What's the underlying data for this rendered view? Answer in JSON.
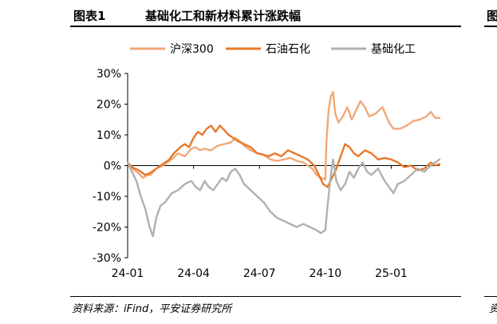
{
  "figure": {
    "number": "图表1",
    "title": "基础化工和新材料累计涨跌幅",
    "source": "资料来源：iFind，平安证券研究所",
    "next_header_fragment": "图",
    "next_source_fragment": "资"
  },
  "chart_data": {
    "type": "line",
    "title": "",
    "xlabel": "",
    "ylabel": "",
    "ylim": [
      -30,
      30
    ],
    "yticks": [
      "30%",
      "20%",
      "10%",
      "0%",
      "-10%",
      "-20%",
      "-30%"
    ],
    "ytick_values": [
      30,
      20,
      10,
      0,
      -10,
      -20,
      -30
    ],
    "xtick_labels": [
      "24-01",
      "24-04",
      "24-07",
      "24-10",
      "25-01"
    ],
    "xtick_months": [
      0,
      3,
      6,
      9,
      12
    ],
    "x_range_months": [
      0,
      14.2
    ],
    "legend_position": "top",
    "grid": false,
    "x_unit": "months since 24-01",
    "series": [
      {
        "name": "沪深300",
        "color": "#f0a878",
        "points": [
          [
            0,
            1
          ],
          [
            0.3,
            -1.5
          ],
          [
            0.5,
            -2.5
          ],
          [
            0.7,
            -4
          ],
          [
            0.9,
            -3
          ],
          [
            1.05,
            -3
          ],
          [
            1.3,
            -1
          ],
          [
            1.6,
            0
          ],
          [
            2.0,
            2
          ],
          [
            2.3,
            4
          ],
          [
            2.6,
            3
          ],
          [
            2.9,
            5.5
          ],
          [
            3.1,
            6
          ],
          [
            3.3,
            5
          ],
          [
            3.5,
            5.5
          ],
          [
            3.8,
            5
          ],
          [
            4.1,
            6.5
          ],
          [
            4.4,
            7
          ],
          [
            4.7,
            7.5
          ],
          [
            4.9,
            9
          ],
          [
            5.1,
            8
          ],
          [
            5.3,
            6.5
          ],
          [
            5.6,
            5
          ],
          [
            5.9,
            4
          ],
          [
            6.2,
            3.5
          ],
          [
            6.5,
            2
          ],
          [
            6.8,
            1.5
          ],
          [
            7.1,
            2
          ],
          [
            7.4,
            2.5
          ],
          [
            7.7,
            1.5
          ],
          [
            8.0,
            1
          ],
          [
            8.2,
            0
          ],
          [
            8.4,
            -1
          ],
          [
            8.6,
            -3
          ],
          [
            8.8,
            -4
          ],
          [
            9.0,
            -4.5
          ],
          [
            9.05,
            8
          ],
          [
            9.15,
            18
          ],
          [
            9.25,
            22.5
          ],
          [
            9.35,
            24
          ],
          [
            9.45,
            17
          ],
          [
            9.6,
            14
          ],
          [
            9.8,
            16
          ],
          [
            10.0,
            19
          ],
          [
            10.2,
            15
          ],
          [
            10.4,
            18
          ],
          [
            10.6,
            21
          ],
          [
            10.8,
            19
          ],
          [
            11.0,
            16
          ],
          [
            11.3,
            17
          ],
          [
            11.6,
            19
          ],
          [
            11.9,
            14
          ],
          [
            12.1,
            12
          ],
          [
            12.4,
            12
          ],
          [
            12.7,
            13
          ],
          [
            13.0,
            14.5
          ],
          [
            13.3,
            15
          ],
          [
            13.6,
            16
          ],
          [
            13.8,
            17.5
          ],
          [
            14.0,
            15.5
          ],
          [
            14.2,
            15.5
          ]
        ]
      },
      {
        "name": "石油石化",
        "color": "#e8782a",
        "points": [
          [
            0,
            1
          ],
          [
            0.2,
            -0.5
          ],
          [
            0.5,
            -1.5
          ],
          [
            0.8,
            -3
          ],
          [
            1.0,
            -2.5
          ],
          [
            1.3,
            -1
          ],
          [
            1.6,
            0.5
          ],
          [
            1.9,
            2
          ],
          [
            2.1,
            4
          ],
          [
            2.4,
            6
          ],
          [
            2.6,
            7
          ],
          [
            2.8,
            6
          ],
          [
            3.0,
            9
          ],
          [
            3.2,
            11
          ],
          [
            3.4,
            10
          ],
          [
            3.6,
            12
          ],
          [
            3.8,
            13
          ],
          [
            4.0,
            11
          ],
          [
            4.2,
            13
          ],
          [
            4.4,
            11.5
          ],
          [
            4.6,
            10
          ],
          [
            4.8,
            9
          ],
          [
            5.0,
            8
          ],
          [
            5.3,
            7
          ],
          [
            5.6,
            6
          ],
          [
            5.9,
            4
          ],
          [
            6.2,
            3.5
          ],
          [
            6.4,
            3
          ],
          [
            6.7,
            4
          ],
          [
            7.0,
            3
          ],
          [
            7.3,
            5
          ],
          [
            7.6,
            4
          ],
          [
            7.9,
            3
          ],
          [
            8.2,
            2
          ],
          [
            8.5,
            0
          ],
          [
            8.7,
            -3
          ],
          [
            8.9,
            -6
          ],
          [
            9.1,
            -7
          ],
          [
            9.3,
            -4
          ],
          [
            9.5,
            -1
          ],
          [
            9.7,
            3
          ],
          [
            9.9,
            7
          ],
          [
            10.1,
            6
          ],
          [
            10.3,
            4
          ],
          [
            10.5,
            3
          ],
          [
            10.8,
            5
          ],
          [
            11.1,
            4
          ],
          [
            11.4,
            2
          ],
          [
            11.7,
            2.5
          ],
          [
            12.0,
            2
          ],
          [
            12.3,
            1
          ],
          [
            12.6,
            -0.5
          ],
          [
            12.9,
            0
          ],
          [
            13.2,
            -1.5
          ],
          [
            13.5,
            -1
          ],
          [
            13.8,
            1
          ],
          [
            14.0,
            0
          ],
          [
            14.2,
            0.5
          ]
        ]
      },
      {
        "name": "基础化工",
        "color": "#b0b0b0",
        "points": [
          [
            0,
            1
          ],
          [
            0.2,
            -2
          ],
          [
            0.4,
            -5
          ],
          [
            0.6,
            -10
          ],
          [
            0.8,
            -14
          ],
          [
            1.0,
            -20
          ],
          [
            1.15,
            -23
          ],
          [
            1.3,
            -17
          ],
          [
            1.5,
            -13
          ],
          [
            1.7,
            -12
          ],
          [
            2.0,
            -9
          ],
          [
            2.3,
            -8
          ],
          [
            2.6,
            -6
          ],
          [
            2.9,
            -5
          ],
          [
            3.1,
            -7
          ],
          [
            3.3,
            -8
          ],
          [
            3.5,
            -5
          ],
          [
            3.7,
            -7
          ],
          [
            3.9,
            -8
          ],
          [
            4.1,
            -6
          ],
          [
            4.3,
            -4
          ],
          [
            4.5,
            -5
          ],
          [
            4.7,
            -2
          ],
          [
            4.9,
            -1
          ],
          [
            5.1,
            -3
          ],
          [
            5.3,
            -6
          ],
          [
            5.6,
            -8
          ],
          [
            5.9,
            -10
          ],
          [
            6.2,
            -12
          ],
          [
            6.5,
            -15
          ],
          [
            6.8,
            -17
          ],
          [
            7.1,
            -18
          ],
          [
            7.4,
            -19
          ],
          [
            7.7,
            -20
          ],
          [
            8.0,
            -19
          ],
          [
            8.3,
            -20
          ],
          [
            8.6,
            -21
          ],
          [
            8.8,
            -22
          ],
          [
            9.0,
            -21
          ],
          [
            9.1,
            -13
          ],
          [
            9.25,
            -3
          ],
          [
            9.35,
            2
          ],
          [
            9.5,
            -5
          ],
          [
            9.7,
            -8
          ],
          [
            9.9,
            -6
          ],
          [
            10.1,
            -2
          ],
          [
            10.3,
            -4
          ],
          [
            10.5,
            -1
          ],
          [
            10.7,
            1
          ],
          [
            10.9,
            -2
          ],
          [
            11.1,
            -3
          ],
          [
            11.4,
            -1
          ],
          [
            11.7,
            -5
          ],
          [
            11.9,
            -7
          ],
          [
            12.1,
            -9
          ],
          [
            12.3,
            -6
          ],
          [
            12.6,
            -5
          ],
          [
            12.9,
            -3
          ],
          [
            13.2,
            -1
          ],
          [
            13.5,
            -2
          ],
          [
            13.8,
            0
          ],
          [
            14.0,
            1
          ],
          [
            14.2,
            2
          ]
        ]
      }
    ]
  }
}
